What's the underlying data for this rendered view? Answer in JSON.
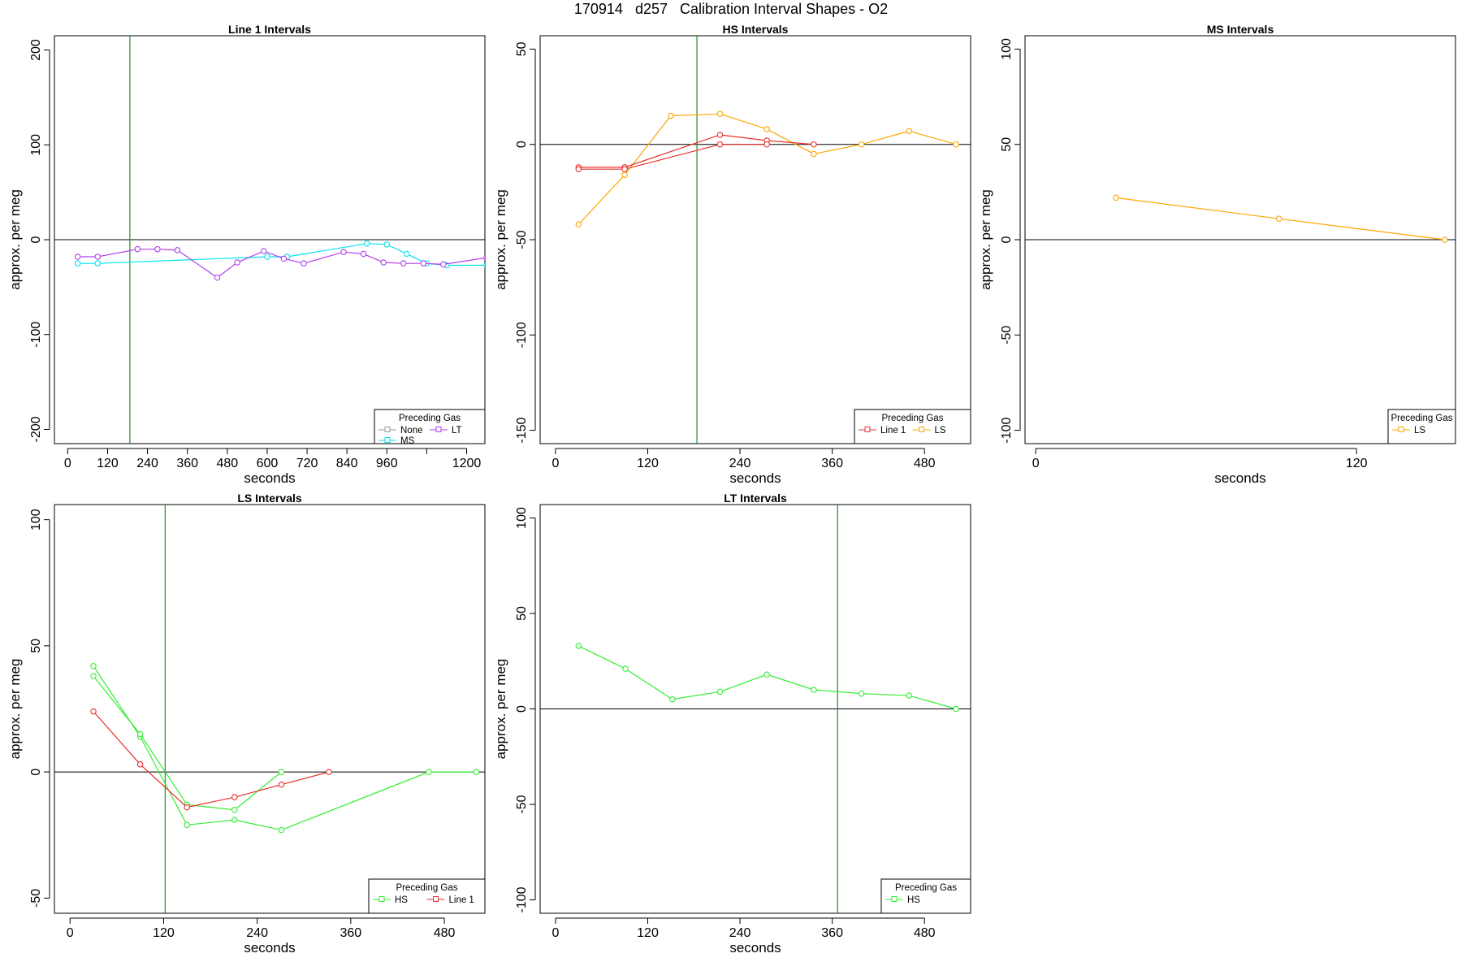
{
  "page_title": "170914   d257   Calibration Interval Shapes - O2",
  "chart_data": [
    {
      "type": "line",
      "title": "Line 1 Intervals",
      "xlabel": "seconds",
      "ylabel": "approx. per meg",
      "xlim": [
        -40,
        1255
      ],
      "ylim": [
        -215,
        215
      ],
      "x_ticks": [
        0,
        120,
        240,
        360,
        480,
        600,
        720,
        840,
        960,
        1200
      ],
      "x_tick_labels": [
        "0",
        "120",
        "240",
        "360",
        "480",
        "600",
        "720",
        "840",
        "960",
        "1200"
      ],
      "x_tick_marks_only": [
        1080
      ],
      "y_ticks": [
        -200,
        -100,
        0,
        100,
        200
      ],
      "y_tick_labels": [
        "-200",
        "-100",
        "0",
        "100",
        "200"
      ],
      "hline": 0,
      "vline": 187,
      "legend": {
        "title": "Preceding Gas",
        "position": "bottom-right",
        "entries": [
          "None",
          "LT",
          "MS"
        ]
      },
      "series": [
        {
          "name": "MS",
          "color": "#00e5ee",
          "x": [
            30,
            90,
            600,
            660,
            900,
            960,
            1020,
            1080,
            1140,
            1260
          ],
          "y": [
            -25,
            -25,
            -18,
            -18,
            -4,
            -5,
            -15,
            -25,
            -27,
            -27
          ]
        },
        {
          "name": "LT",
          "color": "#b23fee",
          "x": [
            30,
            90,
            210,
            270,
            330,
            450,
            510,
            590,
            650,
            710,
            830,
            890,
            950,
            1010,
            1070,
            1130,
            1260
          ],
          "y": [
            -18,
            -18,
            -10,
            -10,
            -11,
            -40,
            -24,
            -12,
            -20,
            -25,
            -13,
            -15,
            -24,
            -25,
            -25,
            -26,
            -19
          ]
        }
      ]
    },
    {
      "type": "line",
      "title": "HS Intervals",
      "xlabel": "seconds",
      "ylabel": "approx. per meg",
      "xlim": [
        -20,
        540
      ],
      "ylim": [
        -157,
        57
      ],
      "x_ticks": [
        0,
        120,
        240,
        360,
        480
      ],
      "x_tick_labels": [
        "0",
        "120",
        "240",
        "360",
        "480"
      ],
      "y_ticks": [
        -150,
        -100,
        -50,
        0,
        50
      ],
      "y_tick_labels": [
        "-150",
        "-100",
        "-50",
        "0",
        "50"
      ],
      "hline": 0,
      "vline": 184,
      "legend": {
        "title": "Preceding Gas",
        "position": "bottom-right",
        "entries": [
          "Line 1",
          "LS"
        ]
      },
      "series": [
        {
          "name": "LS",
          "color": "#ffa500",
          "x": [
            30,
            90,
            150,
            214,
            275,
            336,
            398,
            460,
            521
          ],
          "y": [
            -42,
            -16,
            15,
            16,
            8,
            -5,
            0,
            7,
            0
          ]
        },
        {
          "name": "Line 1",
          "color": "#e8302b",
          "x": [
            30,
            90,
            214,
            275,
            336
          ],
          "y": [
            -12,
            -12,
            5,
            2,
            0
          ]
        },
        {
          "name": "Line 1",
          "color": "#e8302b",
          "x": [
            30,
            90,
            214,
            275
          ],
          "y": [
            -13,
            -13,
            0,
            0
          ]
        }
      ]
    },
    {
      "type": "line",
      "title": "MS Intervals",
      "xlabel": "seconds",
      "ylabel": "approx. per meg",
      "xlim": [
        -4,
        157
      ],
      "ylim": [
        -107,
        107
      ],
      "x_ticks": [
        0,
        120
      ],
      "x_tick_labels": [
        "0",
        "120"
      ],
      "y_ticks": [
        -100,
        -50,
        0,
        50,
        100
      ],
      "y_tick_labels": [
        "-100",
        "-50",
        "0",
        "50",
        "100"
      ],
      "hline": 0,
      "vline": null,
      "legend": {
        "title": "Preceding Gas",
        "position": "bottom-right",
        "entries": [
          "LS"
        ]
      },
      "series": [
        {
          "name": "LS",
          "color": "#ffa500",
          "x": [
            30,
            91,
            153
          ],
          "y": [
            22,
            11,
            0
          ]
        }
      ]
    },
    {
      "type": "line",
      "title": "LS Intervals",
      "xlabel": "seconds",
      "ylabel": "approx. per meg",
      "xlim": [
        -20,
        532
      ],
      "ylim": [
        -56,
        106
      ],
      "x_ticks": [
        0,
        120,
        240,
        360,
        480
      ],
      "x_tick_labels": [
        "0",
        "120",
        "240",
        "360",
        "480"
      ],
      "y_ticks": [
        -50,
        0,
        50,
        100
      ],
      "y_tick_labels": [
        "-50",
        "0",
        "50",
        "100"
      ],
      "hline": 0,
      "vline": 122,
      "legend": {
        "title": "Preceding Gas",
        "position": "bottom-right",
        "entries": [
          "HS",
          "Line 1"
        ]
      },
      "series": [
        {
          "name": "HS",
          "color": "#33ee33",
          "x": [
            30,
            90,
            150,
            211,
            271,
            460,
            521
          ],
          "y": [
            42,
            14,
            -21,
            -19,
            -23,
            0,
            0
          ]
        },
        {
          "name": "HS",
          "color": "#33ee33",
          "x": [
            30,
            90,
            150,
            211,
            271
          ],
          "y": [
            38,
            15,
            -13,
            -15,
            0
          ]
        },
        {
          "name": "Line 1",
          "color": "#e8302b",
          "x": [
            30,
            90,
            150,
            211,
            271,
            332
          ],
          "y": [
            24,
            3,
            -14,
            -10,
            -5,
            0
          ]
        }
      ]
    },
    {
      "type": "line",
      "title": "LT Intervals",
      "xlabel": "seconds",
      "ylabel": "approx. per meg",
      "xlim": [
        -20,
        540
      ],
      "ylim": [
        -107,
        107
      ],
      "x_ticks": [
        0,
        120,
        240,
        360,
        480
      ],
      "x_tick_labels": [
        "0",
        "120",
        "240",
        "360",
        "480"
      ],
      "y_ticks": [
        -100,
        -50,
        0,
        50,
        100
      ],
      "y_tick_labels": [
        "-100",
        "-50",
        "0",
        "50",
        "100"
      ],
      "hline": 0,
      "vline": 367,
      "legend": {
        "title": "Preceding Gas",
        "position": "bottom-right",
        "entries": [
          "HS"
        ]
      },
      "series": [
        {
          "name": "HS",
          "color": "#33ee33",
          "x": [
            30,
            91,
            152,
            214,
            275,
            336,
            398,
            460,
            521
          ],
          "y": [
            33,
            21,
            5,
            9,
            18,
            10,
            8,
            7,
            0
          ]
        }
      ]
    }
  ],
  "colors": {
    "None": "#999999",
    "LT": "#b23fee",
    "MS": "#00e5ee",
    "Line 1": "#e8302b",
    "LS": "#ffa500",
    "HS": "#33ee33",
    "vline": "#228b22",
    "axis": "#000000"
  }
}
